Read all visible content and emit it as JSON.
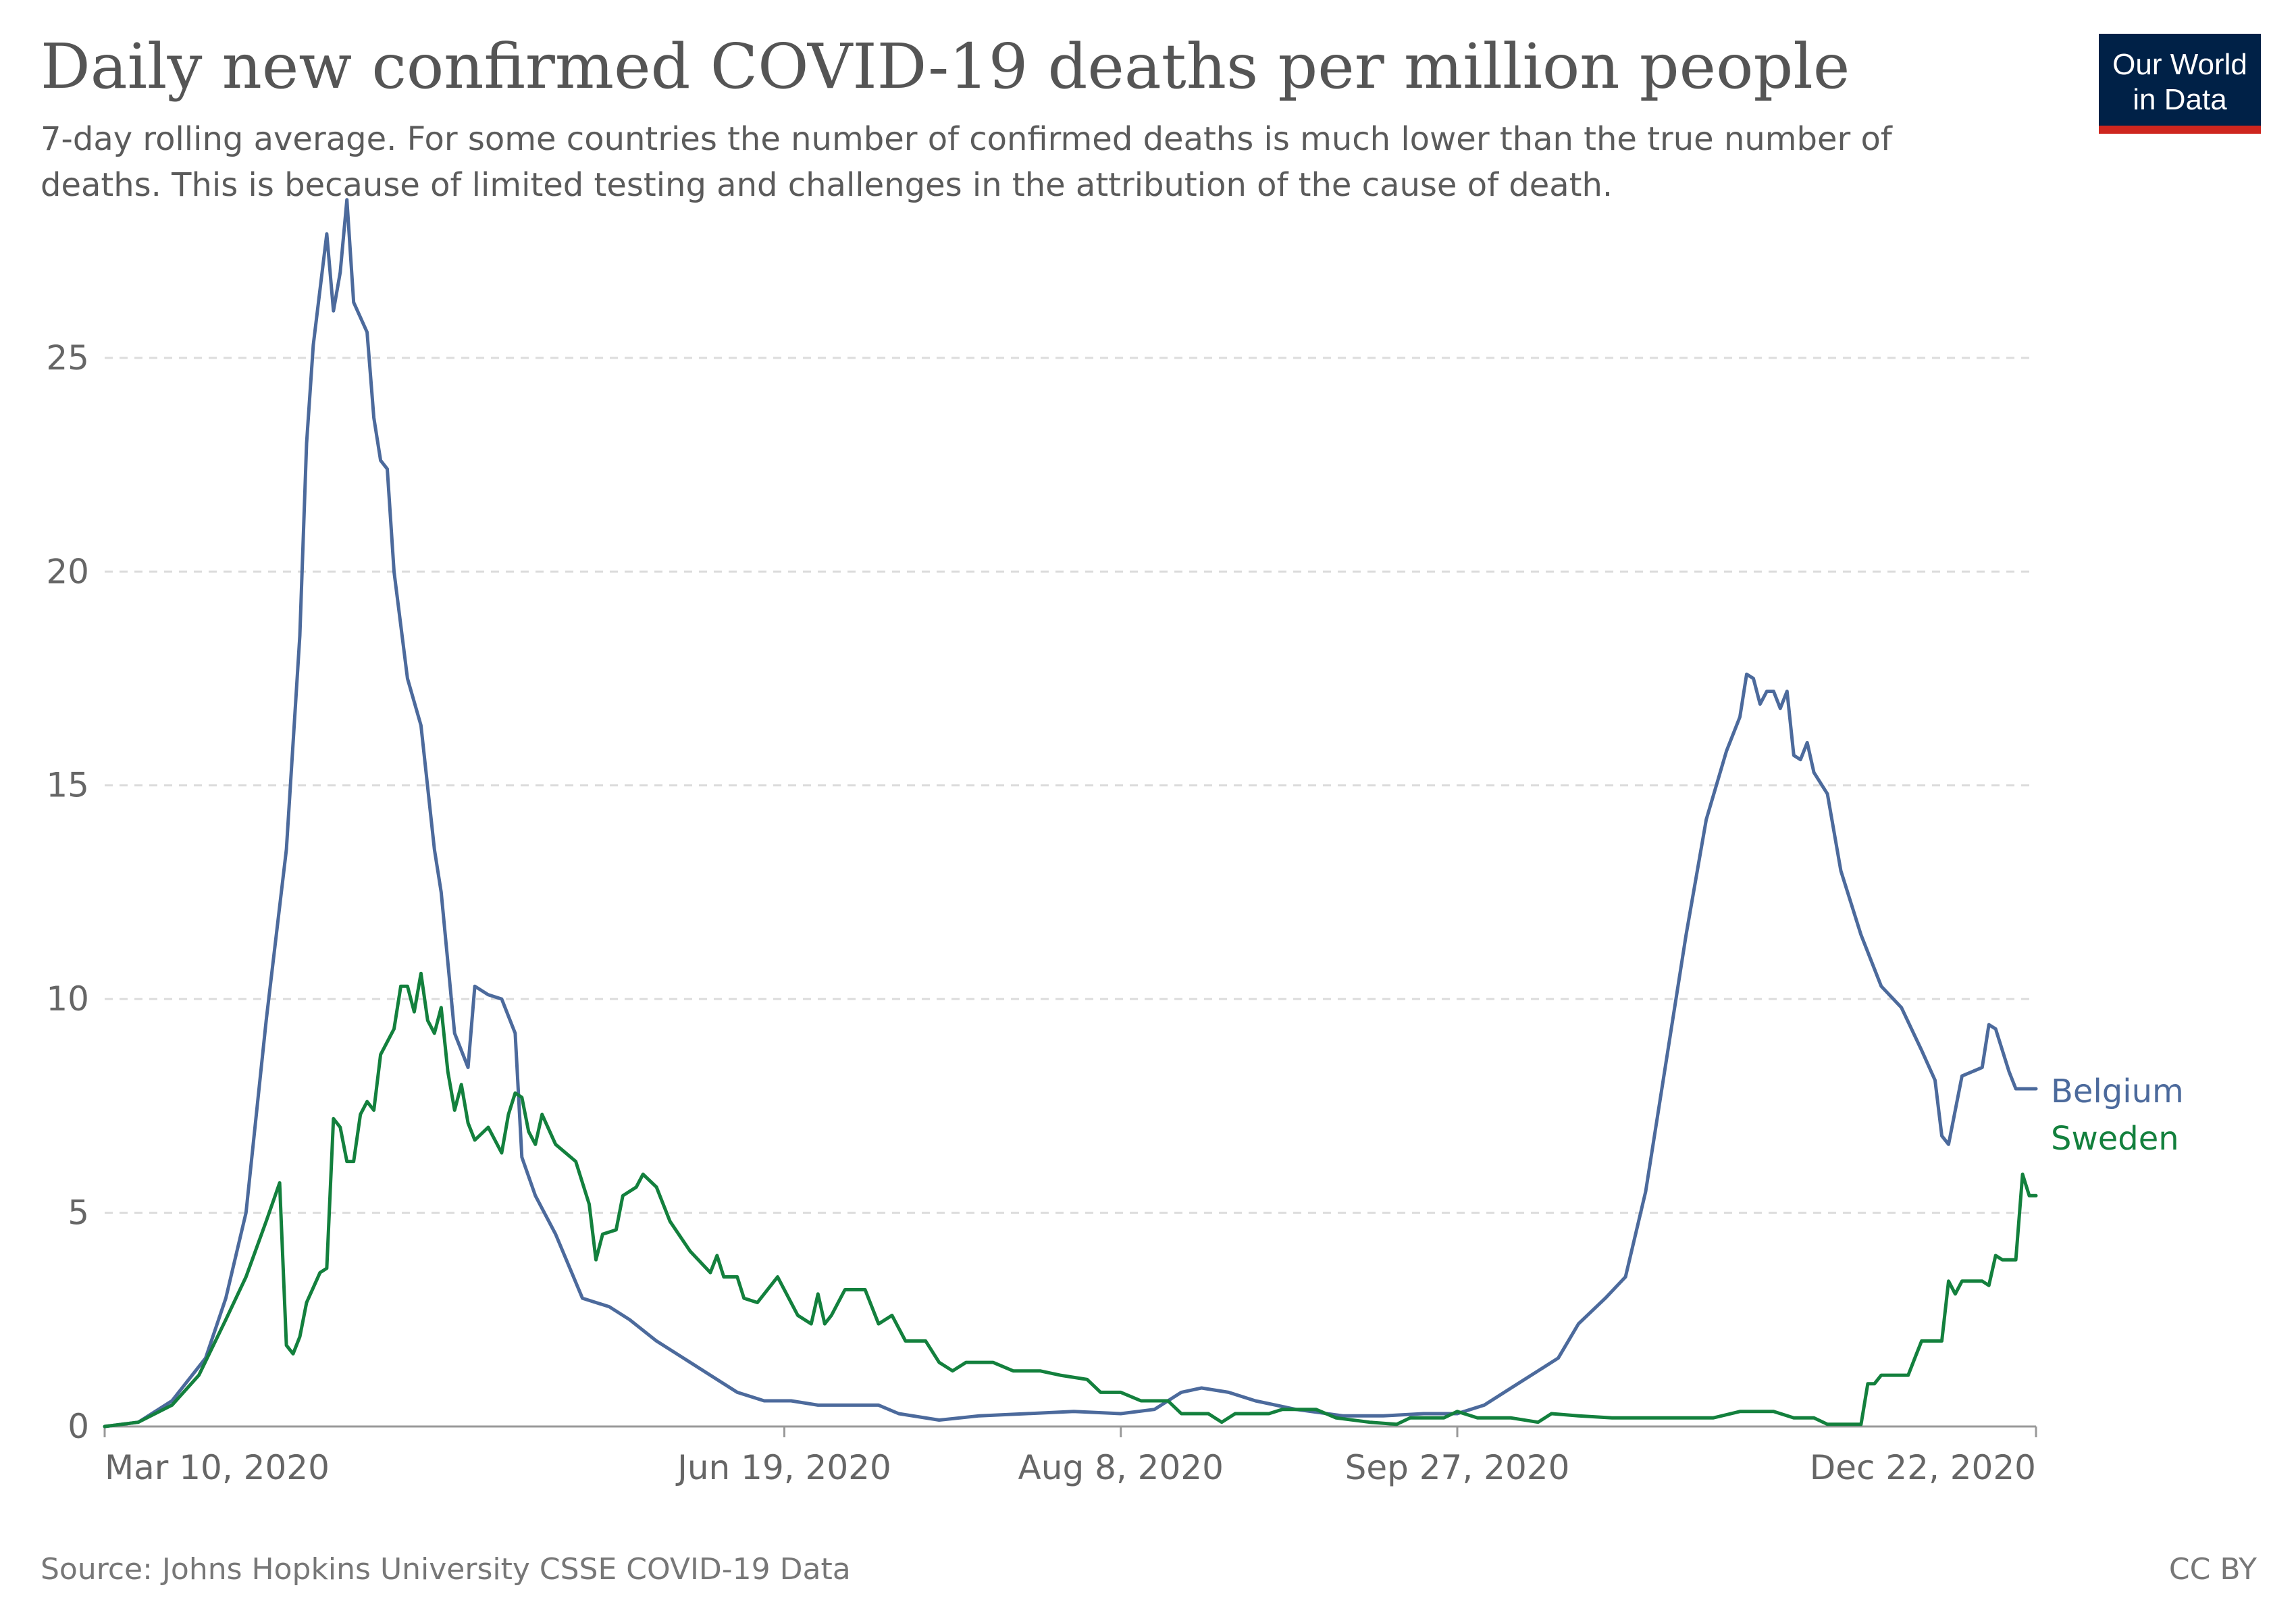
{
  "logo": {
    "line1": "Our World",
    "line2": "in Data",
    "bg": "#002147",
    "accent": "#ce261e"
  },
  "footer": {
    "source": "Source: Johns Hopkins University CSSE COVID-19 Data",
    "license": "CC BY"
  },
  "chart_data": {
    "type": "line",
    "title": "Daily new confirmed COVID-19 deaths per million people",
    "subtitle_lines": [
      "7-day rolling average. For some countries the number of confirmed deaths is much lower than the true number of",
      "deaths. This is because of limited testing and challenges in the attribution of the cause of death."
    ],
    "xlabel": "",
    "ylabel": "",
    "x_range": [
      "2020-03-10",
      "2020-12-22"
    ],
    "x_ticks": [
      {
        "date": "2020-03-10",
        "label": "Mar 10, 2020"
      },
      {
        "date": "2020-06-19",
        "label": "Jun 19, 2020"
      },
      {
        "date": "2020-08-08",
        "label": "Aug 8, 2020"
      },
      {
        "date": "2020-09-27",
        "label": "Sep 27, 2020"
      },
      {
        "date": "2020-12-22",
        "label": "Dec 22, 2020"
      }
    ],
    "ylim": [
      0,
      28
    ],
    "y_ticks": [
      0,
      5,
      10,
      15,
      20,
      25
    ],
    "grid": "horizontal dashed",
    "series": [
      {
        "name": "Belgium",
        "color": "#4c6a9c",
        "points": [
          [
            "2020-03-10",
            0
          ],
          [
            "2020-03-15",
            0.1
          ],
          [
            "2020-03-20",
            0.6
          ],
          [
            "2020-03-25",
            1.6
          ],
          [
            "2020-03-28",
            3.0
          ],
          [
            "2020-03-31",
            5.0
          ],
          [
            "2020-04-03",
            9.5
          ],
          [
            "2020-04-06",
            13.5
          ],
          [
            "2020-04-08",
            18.5
          ],
          [
            "2020-04-09",
            23.0
          ],
          [
            "2020-04-10",
            25.3
          ],
          [
            "2020-04-12",
            27.9
          ],
          [
            "2020-04-13",
            26.1
          ],
          [
            "2020-04-14",
            27.0
          ],
          [
            "2020-04-15",
            28.7
          ],
          [
            "2020-04-16",
            26.3
          ],
          [
            "2020-04-18",
            25.6
          ],
          [
            "2020-04-19",
            23.6
          ],
          [
            "2020-04-20",
            22.6
          ],
          [
            "2020-04-21",
            22.4
          ],
          [
            "2020-04-22",
            20.0
          ],
          [
            "2020-04-24",
            17.5
          ],
          [
            "2020-04-26",
            16.4
          ],
          [
            "2020-04-28",
            13.5
          ],
          [
            "2020-04-29",
            12.5
          ],
          [
            "2020-05-01",
            9.2
          ],
          [
            "2020-05-03",
            8.4
          ],
          [
            "2020-05-04",
            10.3
          ],
          [
            "2020-05-06",
            10.1
          ],
          [
            "2020-05-08",
            10.0
          ],
          [
            "2020-05-10",
            9.2
          ],
          [
            "2020-05-11",
            6.3
          ],
          [
            "2020-05-13",
            5.4
          ],
          [
            "2020-05-16",
            4.5
          ],
          [
            "2020-05-20",
            3.0
          ],
          [
            "2020-05-24",
            2.8
          ],
          [
            "2020-05-27",
            2.5
          ],
          [
            "2020-05-31",
            2.0
          ],
          [
            "2020-06-04",
            1.6
          ],
          [
            "2020-06-08",
            1.2
          ],
          [
            "2020-06-12",
            0.8
          ],
          [
            "2020-06-16",
            0.6
          ],
          [
            "2020-06-20",
            0.6
          ],
          [
            "2020-06-24",
            0.5
          ],
          [
            "2020-06-28",
            0.5
          ],
          [
            "2020-07-03",
            0.5
          ],
          [
            "2020-07-06",
            0.3
          ],
          [
            "2020-07-12",
            0.15
          ],
          [
            "2020-07-18",
            0.25
          ],
          [
            "2020-07-25",
            0.3
          ],
          [
            "2020-08-01",
            0.35
          ],
          [
            "2020-08-08",
            0.3
          ],
          [
            "2020-08-13",
            0.4
          ],
          [
            "2020-08-17",
            0.8
          ],
          [
            "2020-08-20",
            0.9
          ],
          [
            "2020-08-24",
            0.8
          ],
          [
            "2020-08-28",
            0.6
          ],
          [
            "2020-09-03",
            0.4
          ],
          [
            "2020-09-10",
            0.25
          ],
          [
            "2020-09-16",
            0.25
          ],
          [
            "2020-09-22",
            0.3
          ],
          [
            "2020-09-27",
            0.3
          ],
          [
            "2020-10-01",
            0.5
          ],
          [
            "2020-10-05",
            0.9
          ],
          [
            "2020-10-09",
            1.3
          ],
          [
            "2020-10-12",
            1.6
          ],
          [
            "2020-10-15",
            2.4
          ],
          [
            "2020-10-19",
            3.0
          ],
          [
            "2020-10-22",
            3.5
          ],
          [
            "2020-10-25",
            5.5
          ],
          [
            "2020-10-28",
            8.5
          ],
          [
            "2020-10-31",
            11.5
          ],
          [
            "2020-11-03",
            14.2
          ],
          [
            "2020-11-06",
            15.8
          ],
          [
            "2020-11-08",
            16.6
          ],
          [
            "2020-11-09",
            17.6
          ],
          [
            "2020-11-10",
            17.5
          ],
          [
            "2020-11-11",
            16.9
          ],
          [
            "2020-11-12",
            17.2
          ],
          [
            "2020-11-13",
            17.2
          ],
          [
            "2020-11-14",
            16.8
          ],
          [
            "2020-11-15",
            17.2
          ],
          [
            "2020-11-16",
            15.7
          ],
          [
            "2020-11-17",
            15.6
          ],
          [
            "2020-11-18",
            16.0
          ],
          [
            "2020-11-19",
            15.3
          ],
          [
            "2020-11-21",
            14.8
          ],
          [
            "2020-11-23",
            13.0
          ],
          [
            "2020-11-26",
            11.5
          ],
          [
            "2020-11-29",
            10.3
          ],
          [
            "2020-12-02",
            9.8
          ],
          [
            "2020-12-05",
            8.8
          ],
          [
            "2020-12-07",
            8.1
          ],
          [
            "2020-12-08",
            6.8
          ],
          [
            "2020-12-09",
            6.6
          ],
          [
            "2020-12-11",
            8.2
          ],
          [
            "2020-12-14",
            8.4
          ],
          [
            "2020-12-15",
            9.4
          ],
          [
            "2020-12-16",
            9.3
          ],
          [
            "2020-12-18",
            8.3
          ],
          [
            "2020-12-19",
            7.9
          ],
          [
            "2020-12-22",
            7.9
          ]
        ]
      },
      {
        "name": "Sweden",
        "color": "#13803d",
        "points": [
          [
            "2020-03-10",
            0
          ],
          [
            "2020-03-15",
            0.1
          ],
          [
            "2020-03-20",
            0.5
          ],
          [
            "2020-03-24",
            1.2
          ],
          [
            "2020-03-28",
            2.5
          ],
          [
            "2020-03-31",
            3.5
          ],
          [
            "2020-04-03",
            4.8
          ],
          [
            "2020-04-05",
            5.7
          ],
          [
            "2020-04-06",
            1.9
          ],
          [
            "2020-04-07",
            1.7
          ],
          [
            "2020-04-08",
            2.1
          ],
          [
            "2020-04-09",
            2.9
          ],
          [
            "2020-04-11",
            3.6
          ],
          [
            "2020-04-12",
            3.7
          ],
          [
            "2020-04-13",
            7.2
          ],
          [
            "2020-04-14",
            7.0
          ],
          [
            "2020-04-15",
            6.2
          ],
          [
            "2020-04-16",
            6.2
          ],
          [
            "2020-04-17",
            7.3
          ],
          [
            "2020-04-18",
            7.6
          ],
          [
            "2020-04-19",
            7.4
          ],
          [
            "2020-04-20",
            8.7
          ],
          [
            "2020-04-22",
            9.3
          ],
          [
            "2020-04-23",
            10.3
          ],
          [
            "2020-04-24",
            10.3
          ],
          [
            "2020-04-25",
            9.7
          ],
          [
            "2020-04-26",
            10.6
          ],
          [
            "2020-04-27",
            9.5
          ],
          [
            "2020-04-28",
            9.2
          ],
          [
            "2020-04-29",
            9.8
          ],
          [
            "2020-04-30",
            8.3
          ],
          [
            "2020-05-01",
            7.4
          ],
          [
            "2020-05-02",
            8.0
          ],
          [
            "2020-05-03",
            7.1
          ],
          [
            "2020-05-04",
            6.7
          ],
          [
            "2020-05-06",
            7.0
          ],
          [
            "2020-05-08",
            6.4
          ],
          [
            "2020-05-09",
            7.3
          ],
          [
            "2020-05-10",
            7.8
          ],
          [
            "2020-05-11",
            7.7
          ],
          [
            "2020-05-12",
            6.9
          ],
          [
            "2020-05-13",
            6.6
          ],
          [
            "2020-05-14",
            7.3
          ],
          [
            "2020-05-16",
            6.6
          ],
          [
            "2020-05-19",
            6.2
          ],
          [
            "2020-05-21",
            5.2
          ],
          [
            "2020-05-22",
            3.9
          ],
          [
            "2020-05-23",
            4.5
          ],
          [
            "2020-05-25",
            4.6
          ],
          [
            "2020-05-26",
            5.4
          ],
          [
            "2020-05-28",
            5.6
          ],
          [
            "2020-05-29",
            5.9
          ],
          [
            "2020-05-31",
            5.6
          ],
          [
            "2020-06-02",
            4.8
          ],
          [
            "2020-06-05",
            4.1
          ],
          [
            "2020-06-08",
            3.6
          ],
          [
            "2020-06-09",
            4.0
          ],
          [
            "2020-06-10",
            3.5
          ],
          [
            "2020-06-12",
            3.5
          ],
          [
            "2020-06-13",
            3.0
          ],
          [
            "2020-06-15",
            2.9
          ],
          [
            "2020-06-18",
            3.5
          ],
          [
            "2020-06-21",
            2.6
          ],
          [
            "2020-06-23",
            2.4
          ],
          [
            "2020-06-24",
            3.1
          ],
          [
            "2020-06-25",
            2.4
          ],
          [
            "2020-06-26",
            2.6
          ],
          [
            "2020-06-28",
            3.2
          ],
          [
            "2020-07-01",
            3.2
          ],
          [
            "2020-07-03",
            2.4
          ],
          [
            "2020-07-05",
            2.6
          ],
          [
            "2020-07-07",
            2.0
          ],
          [
            "2020-07-10",
            2.0
          ],
          [
            "2020-07-12",
            1.5
          ],
          [
            "2020-07-14",
            1.3
          ],
          [
            "2020-07-16",
            1.5
          ],
          [
            "2020-07-20",
            1.5
          ],
          [
            "2020-07-23",
            1.3
          ],
          [
            "2020-07-27",
            1.3
          ],
          [
            "2020-07-30",
            1.2
          ],
          [
            "2020-08-03",
            1.1
          ],
          [
            "2020-08-05",
            0.8
          ],
          [
            "2020-08-08",
            0.8
          ],
          [
            "2020-08-11",
            0.6
          ],
          [
            "2020-08-15",
            0.6
          ],
          [
            "2020-08-17",
            0.3
          ],
          [
            "2020-08-21",
            0.3
          ],
          [
            "2020-08-23",
            0.1
          ],
          [
            "2020-08-25",
            0.3
          ],
          [
            "2020-08-30",
            0.3
          ],
          [
            "2020-09-01",
            0.4
          ],
          [
            "2020-09-06",
            0.4
          ],
          [
            "2020-09-09",
            0.2
          ],
          [
            "2020-09-14",
            0.1
          ],
          [
            "2020-09-18",
            0.05
          ],
          [
            "2020-09-20",
            0.2
          ],
          [
            "2020-09-25",
            0.2
          ],
          [
            "2020-09-27",
            0.35
          ],
          [
            "2020-09-30",
            0.2
          ],
          [
            "2020-10-05",
            0.2
          ],
          [
            "2020-10-09",
            0.1
          ],
          [
            "2020-10-11",
            0.3
          ],
          [
            "2020-10-15",
            0.25
          ],
          [
            "2020-10-20",
            0.2
          ],
          [
            "2020-10-25",
            0.2
          ],
          [
            "2020-10-30",
            0.2
          ],
          [
            "2020-11-04",
            0.2
          ],
          [
            "2020-11-08",
            0.35
          ],
          [
            "2020-11-13",
            0.35
          ],
          [
            "2020-11-16",
            0.2
          ],
          [
            "2020-11-19",
            0.2
          ],
          [
            "2020-11-21",
            0.05
          ],
          [
            "2020-11-24",
            0.05
          ],
          [
            "2020-11-26",
            0.05
          ],
          [
            "2020-11-27",
            1.0
          ],
          [
            "2020-11-28",
            1.0
          ],
          [
            "2020-11-29",
            1.2
          ],
          [
            "2020-12-03",
            1.2
          ],
          [
            "2020-12-04",
            1.6
          ],
          [
            "2020-12-05",
            2.0
          ],
          [
            "2020-12-08",
            2.0
          ],
          [
            "2020-12-09",
            3.4
          ],
          [
            "2020-12-10",
            3.1
          ],
          [
            "2020-12-11",
            3.4
          ],
          [
            "2020-12-14",
            3.4
          ],
          [
            "2020-12-15",
            3.3
          ],
          [
            "2020-12-16",
            4.0
          ],
          [
            "2020-12-17",
            3.9
          ],
          [
            "2020-12-19",
            3.9
          ],
          [
            "2020-12-20",
            5.9
          ],
          [
            "2020-12-21",
            5.4
          ],
          [
            "2020-12-22",
            5.4
          ]
        ]
      }
    ]
  }
}
